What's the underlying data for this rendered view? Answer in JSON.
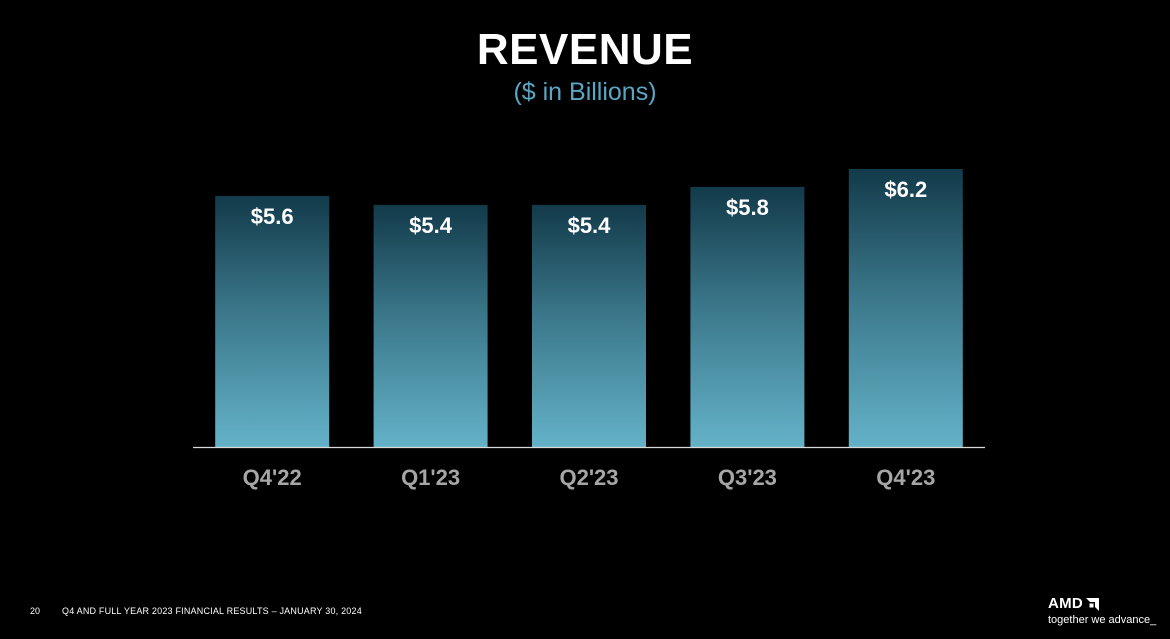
{
  "slide": {
    "title": "REVENUE",
    "subtitle": "($ in Billions)"
  },
  "chart_data": {
    "type": "bar",
    "title": "REVENUE",
    "subtitle": "($ in Billions)",
    "categories": [
      "Q4'22",
      "Q1'23",
      "Q2'23",
      "Q3'23",
      "Q4'23"
    ],
    "values": [
      5.6,
      5.4,
      5.4,
      5.8,
      6.2
    ],
    "data_labels": [
      "$5.6",
      "$5.4",
      "$5.4",
      "$5.8",
      "$6.2"
    ],
    "xlabel": "",
    "ylabel": "",
    "ylim": [
      0,
      6.2
    ],
    "grid": false,
    "legend": "none",
    "colors": {
      "bar_top": "#123a4a",
      "bar_bottom": "#64b2c8",
      "axis": "#d9d9d9",
      "tick_label": "#a6a6a6",
      "data_label": "#ffffff"
    }
  },
  "footer": {
    "page_number": "20",
    "text": "Q4 AND FULL YEAR 2023 FINANCIAL RESULTS – JANUARY 30, 2024"
  },
  "brand": {
    "name": "AMD",
    "tagline": "together we advance_",
    "logo_icon": "amd-arrow-icon"
  }
}
